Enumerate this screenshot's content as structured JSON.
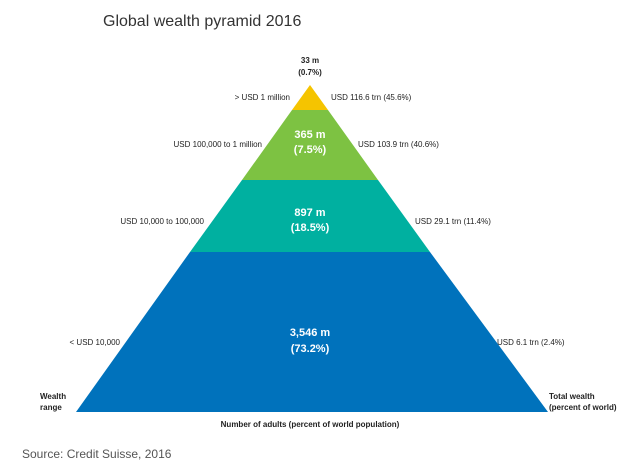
{
  "title": "Global wealth pyramid 2016",
  "levels": [
    {
      "count": "33 m",
      "share": "(0.7%)",
      "range": "> USD 1 million",
      "wealth": "USD 116.6 trn (45.6%)"
    },
    {
      "count": "365 m",
      "share": "(7.5%)",
      "range": "USD 100,000 to 1 million",
      "wealth": "USD 103.9 trn (40.6%)"
    },
    {
      "count": "897 m",
      "share": "(18.5%)",
      "range": "USD 10,000 to 100,000",
      "wealth": "USD 29.1 trn (11.4%)"
    },
    {
      "count": "3,546 m",
      "share": "(73.2%)",
      "range": "< USD 10,000",
      "wealth": "USD 6.1 trn (2.4%)"
    }
  ],
  "left_label": [
    "Wealth",
    "range"
  ],
  "right_label": [
    "Total wealth",
    "(percent of world)"
  ],
  "bottom_label": "Number of adults (percent of world population)",
  "source": "Source: Credit Suisse, 2016"
}
